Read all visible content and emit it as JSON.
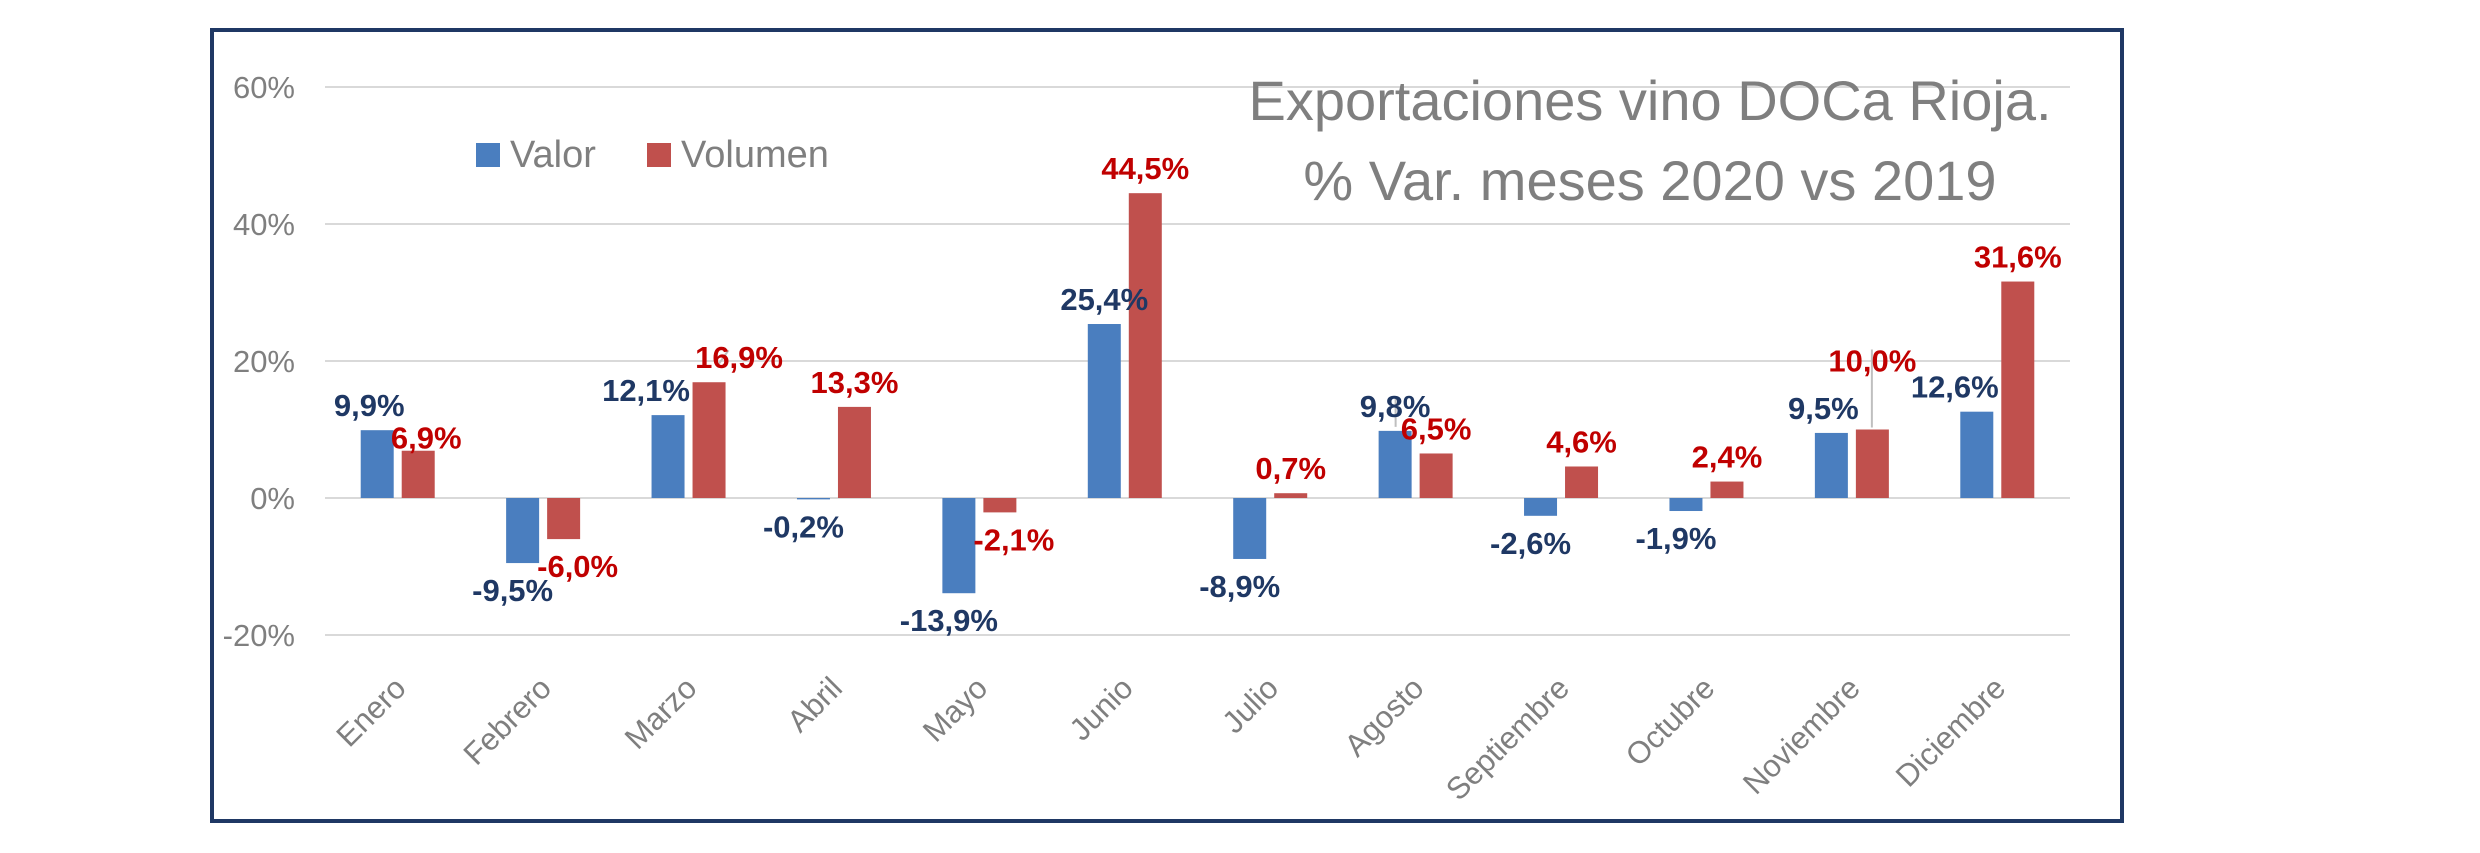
{
  "chart_data": {
    "type": "bar",
    "title_line1": "Exportaciones vino DOCa Rioja.",
    "title_line2": "% Var. meses 2020 vs 2019",
    "categories": [
      "Enero",
      "Febrero",
      "Marzo",
      "Abril",
      "Mayo",
      "Junio",
      "Julio",
      "Agosto",
      "Septiembre",
      "Octubre",
      "Noviembre",
      "Diciembre"
    ],
    "series": [
      {
        "name": "Valor",
        "color": "#4a7ebf",
        "label_color": "#1f3864",
        "values": [
          9.9,
          -9.5,
          12.1,
          -0.2,
          -13.9,
          25.4,
          -8.9,
          9.8,
          -2.6,
          -1.9,
          9.5,
          12.6
        ],
        "labels": [
          "9,9%",
          "-9,5%",
          "12,1%",
          "-0,2%",
          "-13,9%",
          "25,4%",
          "-8,9%",
          "9,8%",
          "-2,6%",
          "-1,9%",
          "9,5%",
          "12,6%"
        ]
      },
      {
        "name": "Volumen",
        "color": "#c0504d",
        "label_color": "#c00000",
        "values": [
          6.9,
          -6.0,
          16.9,
          13.3,
          -2.1,
          44.5,
          0.7,
          6.5,
          4.6,
          2.4,
          10.0,
          31.6
        ],
        "labels": [
          "6,9%",
          "-6,0%",
          "16,9%",
          "13,3%",
          "-2,1%",
          "44,5%",
          "0,7%",
          "6,5%",
          "4,6%",
          "2,4%",
          "10,0%",
          "31,6%"
        ]
      }
    ],
    "ylim": [
      -20,
      60
    ],
    "yticks": [
      "-20%",
      "0%",
      "20%",
      "40%",
      "60%"
    ],
    "ytick_values": [
      -20,
      0,
      20,
      40,
      60
    ],
    "legend_position": "top-left",
    "grid": true
  }
}
